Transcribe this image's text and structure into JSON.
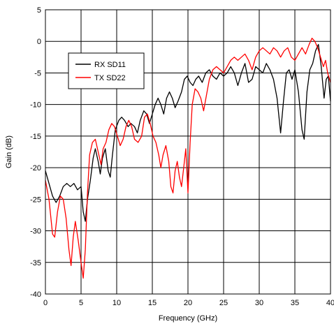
{
  "chart_data": {
    "type": "line",
    "title": "",
    "xlabel": "Frequency (GHz)",
    "ylabel": "Gain (dB)",
    "xlim": [
      0,
      40
    ],
    "ylim": [
      -40,
      5
    ],
    "x_ticks": [
      0,
      5,
      10,
      15,
      20,
      25,
      30,
      35,
      40
    ],
    "y_ticks": [
      5,
      0,
      -5,
      -10,
      -15,
      -20,
      -25,
      -30,
      -35,
      -40
    ],
    "grid": true,
    "legend_position": "upper-left",
    "series": [
      {
        "name": "RX SD11",
        "color": "#000000",
        "points": [
          [
            0,
            -20.5
          ],
          [
            0.5,
            -22.5
          ],
          [
            1.0,
            -24.5
          ],
          [
            1.5,
            -25.5
          ],
          [
            2.0,
            -24.5
          ],
          [
            2.5,
            -23.0
          ],
          [
            3.0,
            -22.5
          ],
          [
            3.5,
            -23.0
          ],
          [
            4.0,
            -22.5
          ],
          [
            4.5,
            -23.5
          ],
          [
            5.0,
            -23.0
          ],
          [
            5.3,
            -27.0
          ],
          [
            5.6,
            -28.5
          ],
          [
            5.9,
            -25.0
          ],
          [
            6.3,
            -22.0
          ],
          [
            6.7,
            -18.5
          ],
          [
            7.0,
            -17.0
          ],
          [
            7.4,
            -19.0
          ],
          [
            7.7,
            -21.0
          ],
          [
            8.0,
            -18.5
          ],
          [
            8.4,
            -17.0
          ],
          [
            8.8,
            -20.5
          ],
          [
            9.1,
            -21.5
          ],
          [
            9.4,
            -18.0
          ],
          [
            9.8,
            -14.0
          ],
          [
            10.3,
            -12.5
          ],
          [
            10.7,
            -12.0
          ],
          [
            11.1,
            -12.5
          ],
          [
            11.6,
            -13.5
          ],
          [
            12.0,
            -13.0
          ],
          [
            12.5,
            -13.5
          ],
          [
            12.9,
            -14.5
          ],
          [
            13.3,
            -12.5
          ],
          [
            13.8,
            -11.0
          ],
          [
            14.2,
            -11.5
          ],
          [
            14.6,
            -13.0
          ],
          [
            15.0,
            -11.5
          ],
          [
            15.4,
            -10.0
          ],
          [
            15.8,
            -9.0
          ],
          [
            16.2,
            -10.0
          ],
          [
            16.6,
            -11.5
          ],
          [
            17.0,
            -9.0
          ],
          [
            17.4,
            -8.0
          ],
          [
            17.8,
            -9.0
          ],
          [
            18.2,
            -10.5
          ],
          [
            18.6,
            -9.5
          ],
          [
            19.1,
            -8.0
          ],
          [
            19.5,
            -6.0
          ],
          [
            19.9,
            -5.5
          ],
          [
            20.3,
            -6.5
          ],
          [
            20.7,
            -7.0
          ],
          [
            21.1,
            -6.0
          ],
          [
            21.5,
            -5.5
          ],
          [
            22.0,
            -6.5
          ],
          [
            22.5,
            -5.0
          ],
          [
            23.0,
            -4.5
          ],
          [
            23.5,
            -5.5
          ],
          [
            24.0,
            -6.0
          ],
          [
            24.5,
            -5.0
          ],
          [
            25.0,
            -5.5
          ],
          [
            25.5,
            -5.0
          ],
          [
            26.0,
            -4.0
          ],
          [
            26.5,
            -5.0
          ],
          [
            27.0,
            -7.0
          ],
          [
            27.5,
            -5.0
          ],
          [
            28.0,
            -3.5
          ],
          [
            28.5,
            -6.5
          ],
          [
            29.0,
            -6.0
          ],
          [
            29.5,
            -4.0
          ],
          [
            30.0,
            -4.5
          ],
          [
            30.5,
            -5.0
          ],
          [
            31.0,
            -3.5
          ],
          [
            31.5,
            -4.5
          ],
          [
            32.0,
            -6.0
          ],
          [
            32.5,
            -9.0
          ],
          [
            33.0,
            -14.5
          ],
          [
            33.4,
            -9.5
          ],
          [
            33.8,
            -5.0
          ],
          [
            34.2,
            -4.5
          ],
          [
            34.6,
            -6.0
          ],
          [
            35.0,
            -4.5
          ],
          [
            35.5,
            -8.0
          ],
          [
            36.0,
            -14.0
          ],
          [
            36.3,
            -15.5
          ],
          [
            36.7,
            -8.0
          ],
          [
            37.1,
            -4.5
          ],
          [
            37.5,
            -3.5
          ],
          [
            37.9,
            -1.5
          ],
          [
            38.3,
            -0.5
          ],
          [
            38.7,
            -4.0
          ],
          [
            39.1,
            -9.0
          ],
          [
            39.4,
            -6.0
          ],
          [
            39.7,
            -5.5
          ],
          [
            40.0,
            -9.5
          ]
        ]
      },
      {
        "name": "TX SD22",
        "color": "#ff0000",
        "points": [
          [
            0,
            -22.0
          ],
          [
            0.5,
            -25.0
          ],
          [
            1.0,
            -30.5
          ],
          [
            1.3,
            -31.0
          ],
          [
            1.7,
            -27.0
          ],
          [
            2.1,
            -24.5
          ],
          [
            2.5,
            -25.0
          ],
          [
            2.9,
            -28.0
          ],
          [
            3.3,
            -33.0
          ],
          [
            3.6,
            -35.5
          ],
          [
            3.9,
            -31.0
          ],
          [
            4.2,
            -28.5
          ],
          [
            4.6,
            -31.5
          ],
          [
            5.0,
            -35.0
          ],
          [
            5.3,
            -37.5
          ],
          [
            5.6,
            -33.0
          ],
          [
            5.9,
            -24.0
          ],
          [
            6.2,
            -18.0
          ],
          [
            6.6,
            -16.0
          ],
          [
            7.0,
            -15.5
          ],
          [
            7.4,
            -17.5
          ],
          [
            7.8,
            -19.5
          ],
          [
            8.1,
            -17.0
          ],
          [
            8.5,
            -16.0
          ],
          [
            8.9,
            -14.0
          ],
          [
            9.3,
            -13.0
          ],
          [
            9.7,
            -13.5
          ],
          [
            10.1,
            -15.0
          ],
          [
            10.5,
            -16.5
          ],
          [
            10.9,
            -15.5
          ],
          [
            11.3,
            -13.5
          ],
          [
            11.7,
            -12.5
          ],
          [
            12.1,
            -13.5
          ],
          [
            12.5,
            -15.5
          ],
          [
            13.0,
            -16.0
          ],
          [
            13.5,
            -15.0
          ],
          [
            13.9,
            -12.0
          ],
          [
            14.3,
            -11.5
          ],
          [
            14.7,
            -13.0
          ],
          [
            15.1,
            -15.0
          ],
          [
            15.5,
            -16.0
          ],
          [
            15.9,
            -18.0
          ],
          [
            16.2,
            -20.0
          ],
          [
            16.5,
            -18.0
          ],
          [
            16.9,
            -16.5
          ],
          [
            17.3,
            -19.0
          ],
          [
            17.6,
            -23.0
          ],
          [
            17.9,
            -24.0
          ],
          [
            18.2,
            -20.5
          ],
          [
            18.5,
            -19.0
          ],
          [
            18.8,
            -21.5
          ],
          [
            19.1,
            -23.0
          ],
          [
            19.4,
            -20.0
          ],
          [
            19.7,
            -17.0
          ],
          [
            20.0,
            -24.0
          ],
          [
            20.3,
            -16.0
          ],
          [
            20.6,
            -10.0
          ],
          [
            21.0,
            -7.5
          ],
          [
            21.4,
            -8.0
          ],
          [
            21.8,
            -9.0
          ],
          [
            22.2,
            -11.0
          ],
          [
            22.6,
            -8.5
          ],
          [
            23.0,
            -6.0
          ],
          [
            23.5,
            -4.5
          ],
          [
            24.0,
            -4.0
          ],
          [
            24.5,
            -4.5
          ],
          [
            25.0,
            -5.0
          ],
          [
            25.5,
            -4.0
          ],
          [
            26.0,
            -3.0
          ],
          [
            26.5,
            -2.5
          ],
          [
            27.0,
            -3.0
          ],
          [
            27.5,
            -2.5
          ],
          [
            28.0,
            -2.0
          ],
          [
            28.5,
            -3.0
          ],
          [
            29.0,
            -4.5
          ],
          [
            29.5,
            -2.5
          ],
          [
            30.0,
            -1.5
          ],
          [
            30.5,
            -1.0
          ],
          [
            31.0,
            -1.5
          ],
          [
            31.5,
            -2.0
          ],
          [
            32.0,
            -1.0
          ],
          [
            32.5,
            -1.5
          ],
          [
            33.0,
            -2.5
          ],
          [
            33.5,
            -1.5
          ],
          [
            34.0,
            -1.0
          ],
          [
            34.5,
            -2.5
          ],
          [
            35.0,
            -3.0
          ],
          [
            35.5,
            -2.0
          ],
          [
            36.0,
            -1.0
          ],
          [
            36.5,
            -2.0
          ],
          [
            37.0,
            -0.5
          ],
          [
            37.4,
            0.5
          ],
          [
            37.8,
            0.0
          ],
          [
            38.2,
            -1.0
          ],
          [
            38.6,
            -2.5
          ],
          [
            39.0,
            -4.0
          ],
          [
            39.3,
            -3.0
          ],
          [
            39.6,
            -5.0
          ],
          [
            40.0,
            -6.5
          ]
        ]
      }
    ]
  }
}
